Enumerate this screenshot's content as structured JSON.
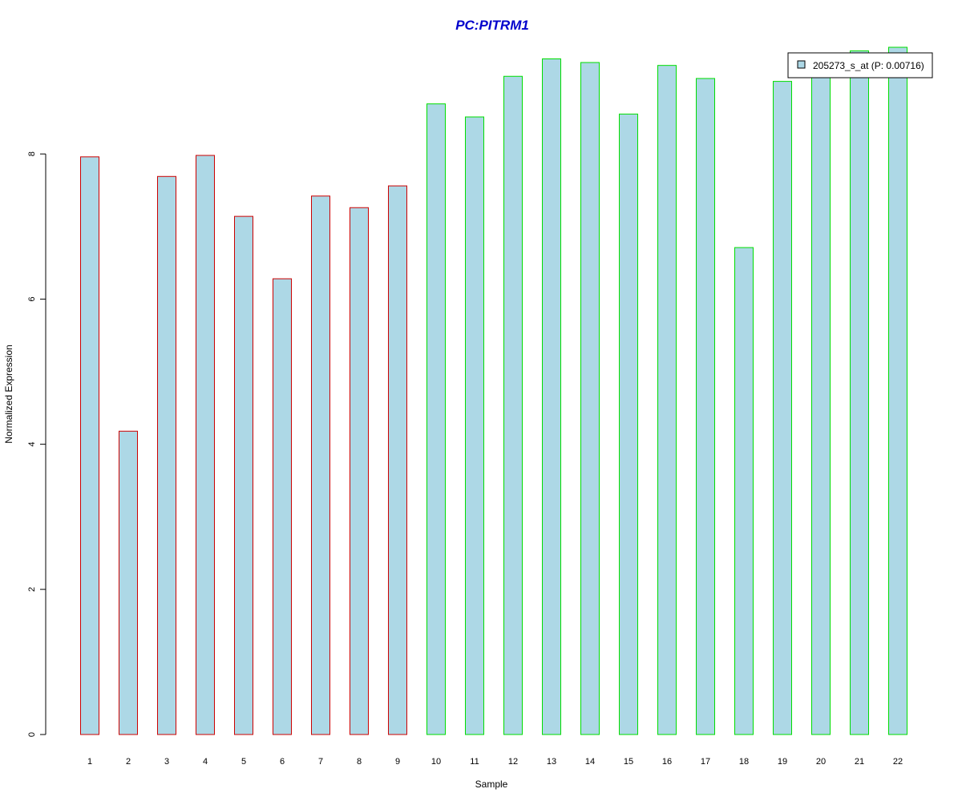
{
  "chart_data": {
    "type": "bar",
    "title": "PC:PITRM1",
    "xlabel": "Sample",
    "ylabel": "Normalized Expression",
    "categories": [
      "1",
      "2",
      "3",
      "4",
      "5",
      "6",
      "7",
      "8",
      "9",
      "10",
      "11",
      "12",
      "13",
      "14",
      "15",
      "16",
      "17",
      "18",
      "19",
      "20",
      "21",
      "22"
    ],
    "series": [
      {
        "name": "205273_s_at (P: 0.00716)",
        "values": [
          7.96,
          4.18,
          7.69,
          7.98,
          7.14,
          6.28,
          7.42,
          7.26,
          7.56,
          8.69,
          8.51,
          9.07,
          9.31,
          9.26,
          8.55,
          9.22,
          9.04,
          6.71,
          9.0,
          9.17,
          9.42,
          9.47
        ]
      }
    ],
    "group_colors": [
      "#cc0000",
      "#cc0000",
      "#cc0000",
      "#cc0000",
      "#cc0000",
      "#cc0000",
      "#cc0000",
      "#cc0000",
      "#cc0000",
      "#00dd00",
      "#00dd00",
      "#00dd00",
      "#00dd00",
      "#00dd00",
      "#00dd00",
      "#00dd00",
      "#00dd00",
      "#00dd00",
      "#00dd00",
      "#00dd00",
      "#00dd00",
      "#00dd00"
    ],
    "bar_fill": "#add8e6",
    "title_color": "#0000cc",
    "yticks": [
      0,
      2,
      4,
      6,
      8
    ],
    "ylim": [
      0,
      9.5
    ],
    "grid": false,
    "legend_position": "top-right"
  }
}
